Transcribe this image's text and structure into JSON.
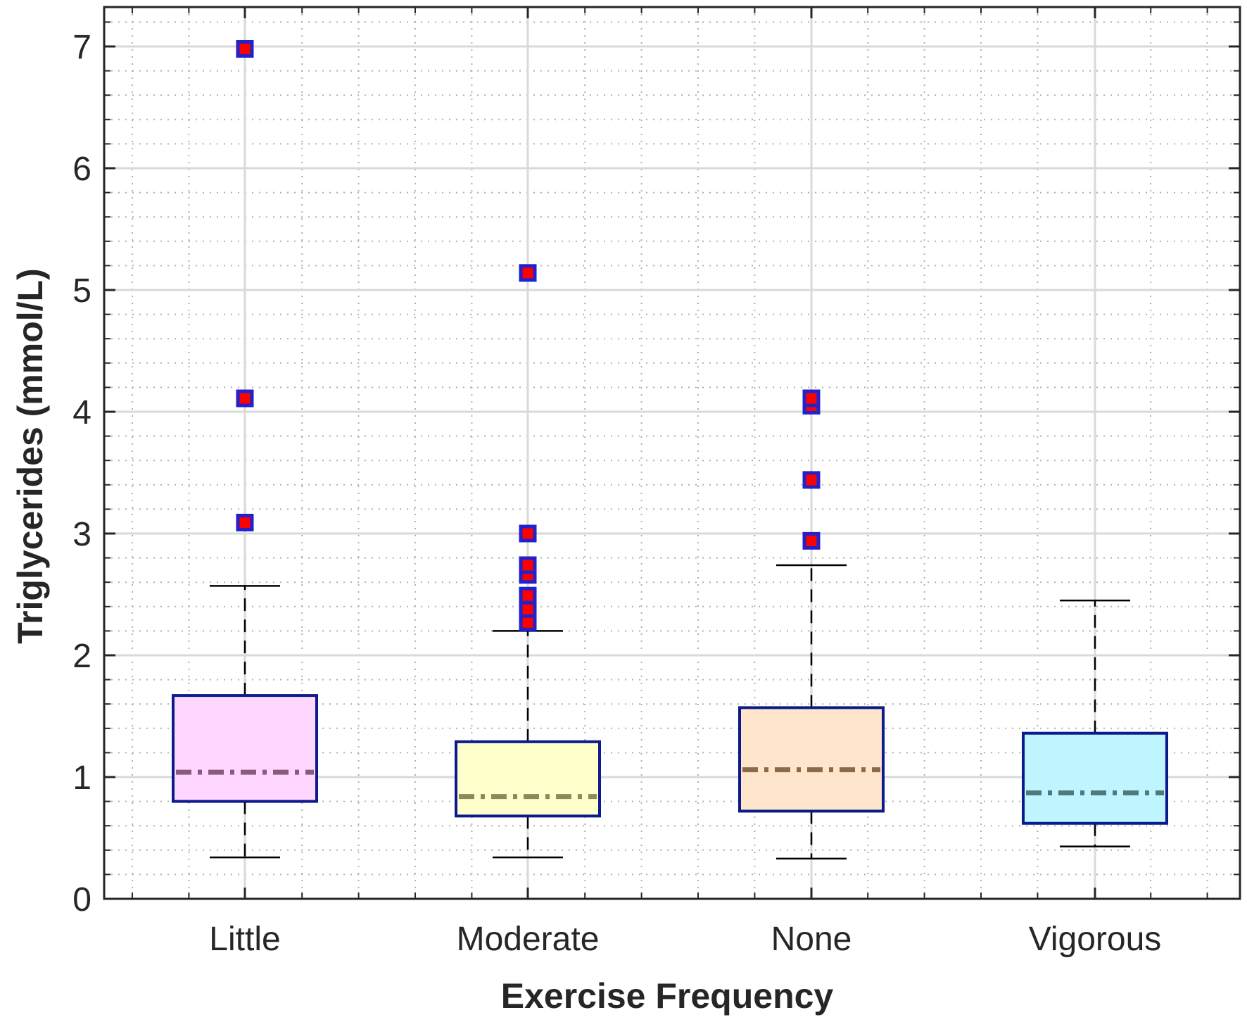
{
  "chart_data": {
    "type": "box",
    "xlabel": "Exercise Frequency",
    "ylabel": "Triglycerides (mmol/L)",
    "ylim": [
      0,
      7.45
    ],
    "yticks": [
      0,
      1,
      2,
      3,
      4,
      5,
      6,
      7
    ],
    "yminor_step": 0.2,
    "grid": "on",
    "minor_grid": "on",
    "categories": [
      "Little",
      "Moderate",
      "None",
      "Vigorous"
    ],
    "boxes": [
      {
        "category": "Little",
        "whisker_low": 0.34,
        "q1": 0.8,
        "median": 1.04,
        "q3": 1.67,
        "whisker_high": 2.57,
        "outliers": [
          3.09,
          4.11,
          6.98
        ],
        "fill": "#ffd6ff",
        "median_color": "#8a5a7c"
      },
      {
        "category": "Moderate",
        "whisker_low": 0.34,
        "q1": 0.68,
        "median": 0.84,
        "q3": 1.29,
        "whisker_high": 2.2,
        "outliers": [
          2.27,
          2.38,
          2.49,
          2.66,
          2.74,
          3.0,
          5.14
        ],
        "fill": "#ffffcc",
        "median_color": "#8c8a5c"
      },
      {
        "category": "None",
        "whisker_low": 0.33,
        "q1": 0.72,
        "median": 1.06,
        "q3": 1.57,
        "whisker_high": 2.74,
        "outliers": [
          2.94,
          3.44,
          4.05,
          4.11
        ],
        "fill": "#ffe5cc",
        "median_color": "#8a6a4a"
      },
      {
        "category": "Vigorous",
        "whisker_low": 0.43,
        "q1": 0.62,
        "median": 0.87,
        "q3": 1.36,
        "whisker_high": 2.45,
        "outliers": [],
        "fill": "#bff5ff",
        "median_color": "#4f7a7a"
      }
    ],
    "colors": {
      "box_edge": "#0b1a8c",
      "outlier_edge": "#2222cc",
      "outlier_fill": "#ff0000",
      "whisker": "#000000",
      "major_grid": "#d9d9d9",
      "minor_grid": "#b0b0b0",
      "axis": "#262626"
    }
  }
}
